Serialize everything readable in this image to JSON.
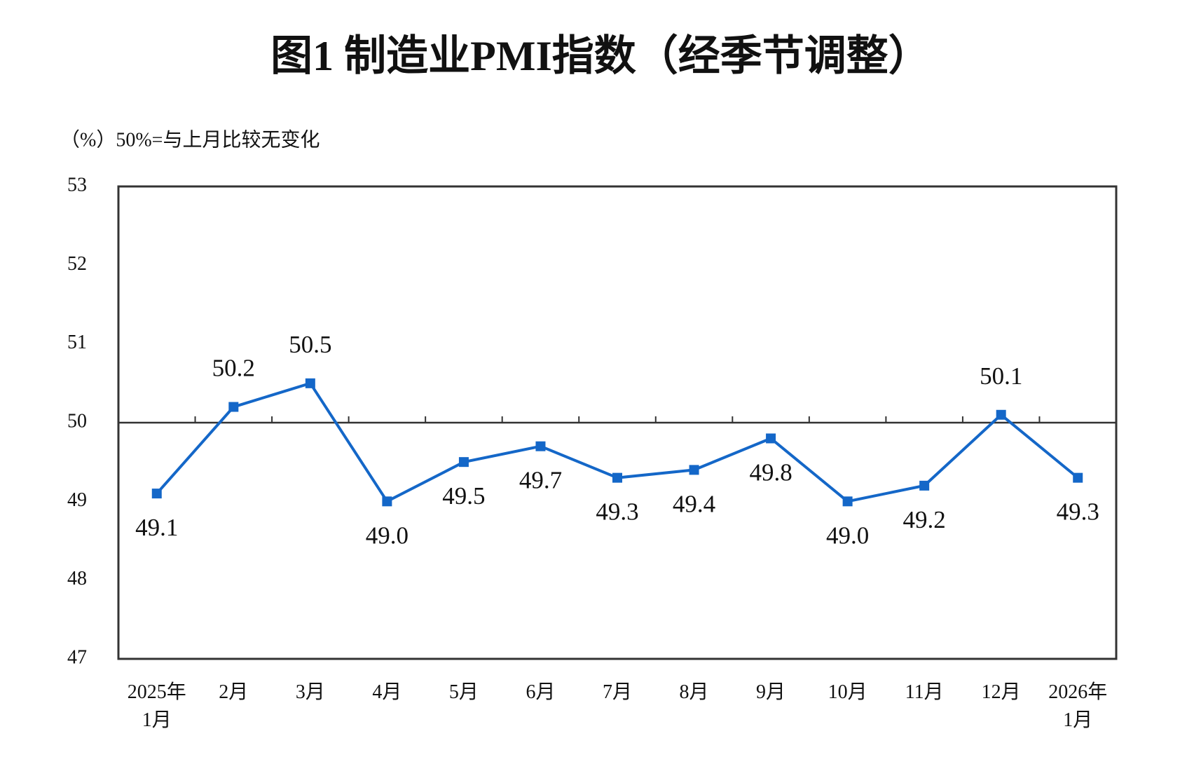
{
  "chart_data": {
    "type": "line",
    "title": "图1  制造业PMI指数（经季节调整）",
    "subtitle": "（%）50%=与上月比较无变化",
    "categories": [
      "2025年\n1月",
      "2月",
      "3月",
      "4月",
      "5月",
      "6月",
      "7月",
      "8月",
      "9月",
      "10月",
      "11月",
      "12月",
      "2026年\n1月"
    ],
    "series": [
      {
        "name": "制造业PMI",
        "color": "#1467c8",
        "values": [
          49.1,
          50.2,
          50.5,
          49.0,
          49.5,
          49.7,
          49.3,
          49.4,
          49.8,
          49.0,
          49.2,
          50.1,
          49.3
        ],
        "value_labels": [
          "49.1",
          "50.2",
          "50.5",
          "49.0",
          "49.5",
          "49.7",
          "49.3",
          "49.4",
          "49.8",
          "49.0",
          "49.2",
          "50.1",
          "49.3"
        ]
      }
    ],
    "ylim": [
      47,
      53
    ],
    "yticks": [
      47,
      48,
      49,
      50,
      51,
      52,
      53
    ],
    "reference_line": 50,
    "grid": false
  }
}
